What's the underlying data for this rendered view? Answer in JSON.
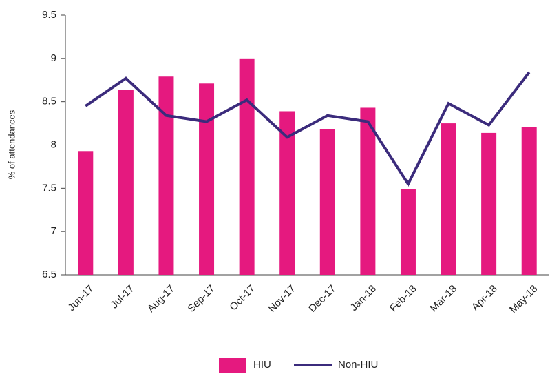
{
  "chart_data": {
    "type": "bar",
    "y_label": "% of attendances",
    "categories": [
      "Jun-17",
      "Jul-17",
      "Aug-17",
      "Sep-17",
      "Oct-17",
      "Nov-17",
      "Dec-17",
      "Jan-18",
      "Feb-18",
      "Mar-18",
      "Apr-18",
      "May-18"
    ],
    "series": [
      {
        "name": "HIU",
        "type": "bar",
        "color": "#e5197f",
        "values": [
          7.93,
          8.64,
          8.79,
          8.71,
          9.0,
          8.39,
          8.18,
          8.43,
          7.49,
          8.25,
          8.14,
          8.21
        ]
      },
      {
        "name": "Non-HIU",
        "type": "line",
        "color": "#3b2b7c",
        "values": [
          8.45,
          8.77,
          8.34,
          8.27,
          8.52,
          8.09,
          8.34,
          8.27,
          7.55,
          8.48,
          8.23,
          8.84
        ]
      }
    ],
    "ylim": [
      6.5,
      9.5
    ],
    "yticks": [
      6.5,
      7,
      7.5,
      8,
      8.5,
      9,
      9.5
    ],
    "grid": false,
    "legend": "bottom"
  }
}
